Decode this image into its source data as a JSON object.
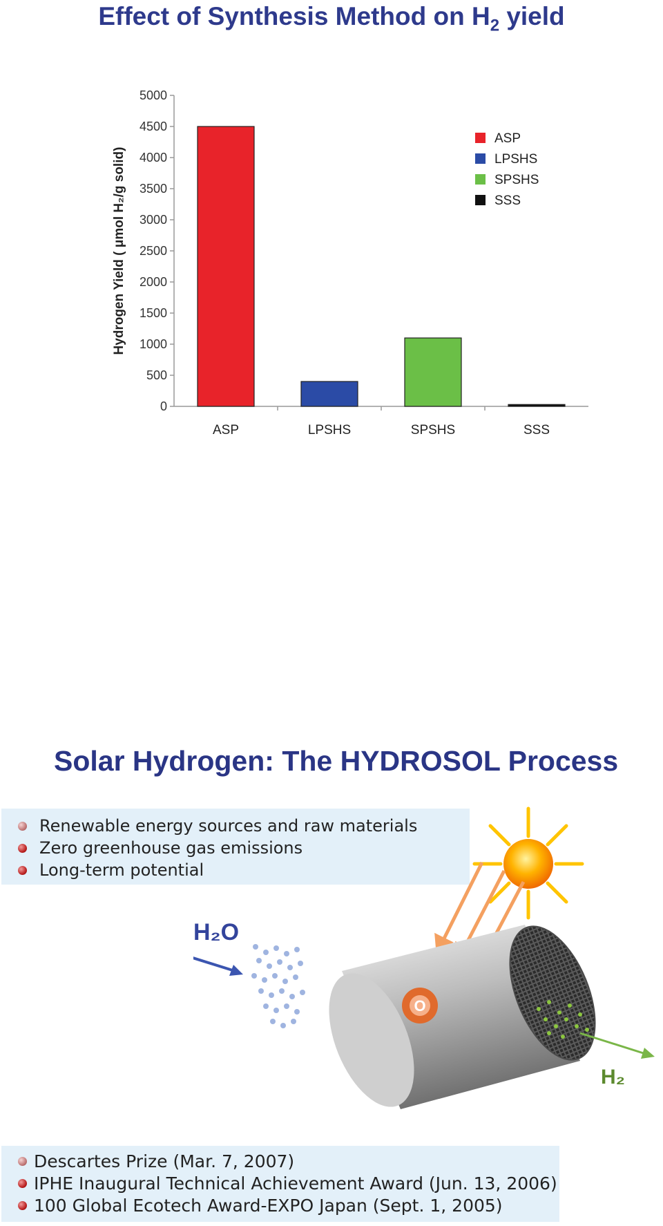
{
  "page_title_1": "Effect of Synthesis Method on H",
  "page_title_1_sub": "2",
  "page_title_1_tail": " yield",
  "page_title_2": "Solar Hydrogen: The HYDROSOL Process",
  "advantages": [
    "Renewable energy sources and raw materials",
    "Zero greenhouse gas emissions",
    "Long-term potential"
  ],
  "awards": [
    "Descartes Prize (Mar. 7, 2007)",
    "IPHE Inaugural Technical Achievement Award (Jun. 13, 2006)",
    "100 Global Ecotech Award-EXPO Japan (Sept. 1, 2005)"
  ],
  "diagram": {
    "water_label": "H₂O",
    "hydrogen_label": "H₂",
    "oxygen_label": "O"
  },
  "colors": {
    "title": "#2e3a8c",
    "box": "#e3f0f9"
  },
  "chart_data": {
    "type": "bar",
    "categories": [
      "ASP",
      "LPSHS",
      "SPSHS",
      "SSS"
    ],
    "values": [
      4500,
      400,
      1100,
      30
    ],
    "colors": [
      "#e8232a",
      "#2b4ba6",
      "#6bbf47",
      "#111111"
    ],
    "legend": [
      "ASP",
      "LPSHS",
      "SPSHS",
      "SSS"
    ],
    "legend_position": "top-right",
    "ylabel": "Hydrogen Yield ( μmol H₂/g solid)",
    "xlabel": "",
    "ylim": [
      0,
      5000
    ],
    "yticks": [
      0,
      500,
      1000,
      1500,
      2000,
      2500,
      3000,
      3500,
      4000,
      4500,
      5000
    ],
    "grid": false
  }
}
